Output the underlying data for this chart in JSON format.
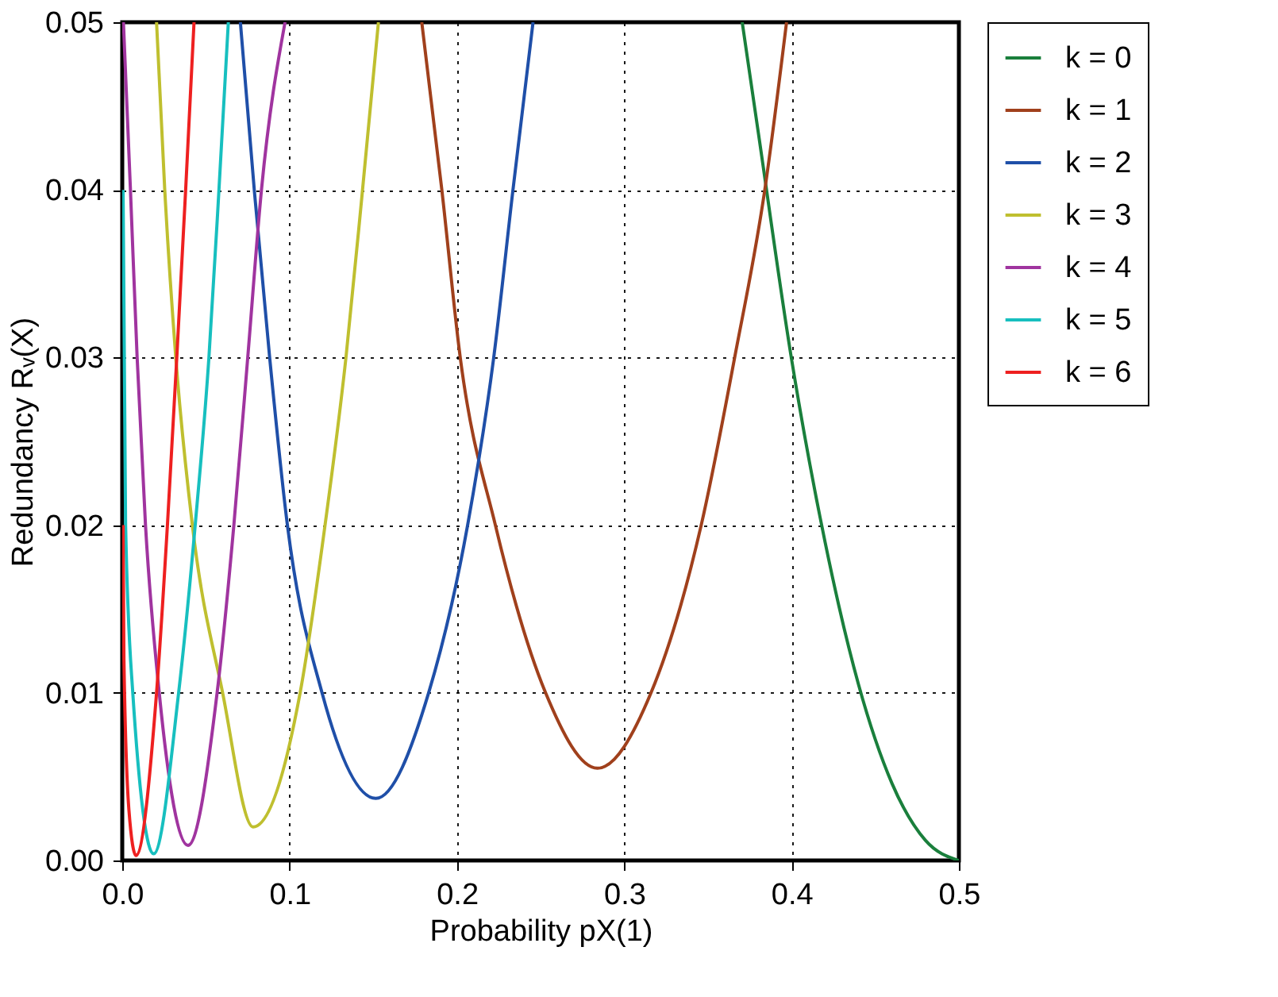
{
  "chart_data": {
    "type": "line",
    "xlabel": "Probability pX(1)",
    "ylabel": "Redundancy Rᵥ(X)",
    "xlim": [
      0,
      0.5
    ],
    "ylim": [
      0,
      0.05
    ],
    "xticks": [
      {
        "value": 0,
        "label": "0.0"
      },
      0.1,
      0.2,
      0.3,
      0.4,
      0.5
    ],
    "yticks": [
      {
        "value": 0,
        "label": "0.00"
      },
      {
        "value": 0.01,
        "label": "0.01"
      },
      {
        "value": 0.02,
        "label": "0.02"
      },
      {
        "value": 0.03,
        "label": "0.03"
      },
      {
        "value": 0.04,
        "label": "0.04"
      },
      {
        "value": 0.05,
        "label": "0.05"
      }
    ],
    "grid": true,
    "legend": "right",
    "line_style": "solid",
    "marker": "none",
    "series": [
      {
        "name": "k = 0",
        "color": "#1a7f3c",
        "x": [
          0.3705,
          0.38,
          0.4,
          0.42,
          0.44,
          0.46,
          0.48,
          0.5
        ],
        "values": [
          0.05,
          0.0435,
          0.0299,
          0.019,
          0.0105,
          0.0046,
          0.0012,
          0
        ]
      },
      {
        "name": "k = 1",
        "color": "#a0401c",
        "x": [
          0.179,
          0.191,
          0.202,
          0.223,
          0.253,
          0.284,
          0.316,
          0.346,
          0.366,
          0.384,
          0.397
        ],
        "values": [
          0.05,
          0.04,
          0.03,
          0.02,
          0.01,
          0.0055,
          0.01,
          0.02,
          0.03,
          0.04,
          0.05
        ]
      },
      {
        "name": "k = 2",
        "color": "#1f4fa8",
        "x": [
          0.0706,
          0.0789,
          0.0881,
          0.0987,
          0.1194,
          0.1515,
          0.1831,
          0.2064,
          0.222,
          0.2335,
          0.2455
        ],
        "values": [
          0.05,
          0.04,
          0.03,
          0.02,
          0.01,
          0.0037,
          0.01,
          0.02,
          0.03,
          0.04,
          0.05
        ]
      },
      {
        "name": "k = 3",
        "color": "#bfbf2f",
        "x": [
          0.0205,
          0.0254,
          0.032,
          0.0419,
          0.06,
          0.0782,
          0.1063,
          0.1212,
          0.1337,
          0.1436,
          0.1531
        ],
        "values": [
          0.05,
          0.04,
          0.03,
          0.02,
          0.01,
          0.002,
          0.01,
          0.02,
          0.03,
          0.04,
          0.05
        ]
      },
      {
        "name": "k = 4",
        "color": "#a0349f",
        "x": [
          0.0007,
          0.0049,
          0.0089,
          0.0139,
          0.0221,
          0.0393,
          0.0567,
          0.0667,
          0.075,
          0.0832,
          0.0973
        ],
        "values": [
          0.05,
          0.04,
          0.03,
          0.02,
          0.01,
          0.0009,
          0.01,
          0.02,
          0.03,
          0.04,
          0.05
        ]
      },
      {
        "name": "k = 5",
        "color": "#17bfbf",
        "x": [
          0.0005,
          0.002,
          0.0063,
          0.0188,
          0.0337,
          0.0436,
          0.0518,
          0.0578,
          0.0634
        ],
        "values": [
          0.04,
          0.02,
          0.01,
          0.0004,
          0.01,
          0.02,
          0.03,
          0.04,
          0.05
        ]
      },
      {
        "name": "k = 6",
        "color": "#ee2020",
        "x": [
          0.0005,
          0.001,
          0.004,
          0.0082,
          0.0205,
          0.027,
          0.0326,
          0.0379,
          0.0429
        ],
        "values": [
          0.02,
          0.012,
          0.003,
          0.0003,
          0.01,
          0.02,
          0.03,
          0.04,
          0.05
        ]
      }
    ]
  }
}
